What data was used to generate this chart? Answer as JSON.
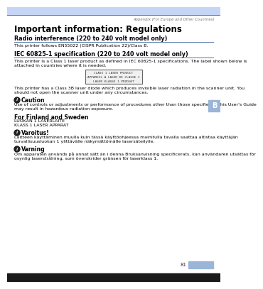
{
  "header_bg": "#c5d5f5",
  "header_line_color": "#4a6fa5",
  "page_bg": "#ffffff",
  "header_text": "Appendix (For Europe and Other Countries)",
  "header_text_color": "#777777",
  "title": "Important information: Regulations",
  "title_color": "#000000",
  "section1_heading": "Radio interference (220 to 240 volt model only)",
  "section1_line_color": "#4a6fa5",
  "section1_body": "This printer follows EN55022 (CISPR Publication 22)/Class B.",
  "section2_heading": "IEC 60825-1 specification (220 to 240 volt model only)",
  "section2_line_color": "#4a6fa5",
  "section2_body1": "This printer is a Class 1 laser product as defined in IEC 60825-1 specifications. The label shown below is",
  "section2_body1b": "attached in countries where it is needed.",
  "label_lines": [
    "CLASS 1 LASER PRODUCT",
    "APPAREIL A LASER DE CLASSE 1",
    "LASER KLASSE 1 PRODUKT"
  ],
  "section2_body2a": "This printer has a Class 3B laser diode which produces invisible laser radiation in the scanner unit. You",
  "section2_body2b": "should not open the scanner unit under any circumstances.",
  "caution_label": "Caution",
  "caution_body1": "Use of controls or adjustments or performance of procedures other than those specified in this User's Guide",
  "caution_body2": "may result in hazardous radiation exposure.",
  "finland_heading": "For Finland and Sweden",
  "finland_line1": "LUOKAN 1 LASERLAITE",
  "finland_line2": "KLASS 1 LASER APPARAT",
  "varoitus_label": "Varoitus!",
  "varoitus_body1": "Laitteen käyttäminen muulla kuin tässä käyttöohjeessa mainitulla tavalla saattaa altistaa käyttäjän",
  "varoitus_body2": "turvallisuusluokan 1 ylittävälle näkymättömälle lasersäteilylle.",
  "varning_label": "Varning",
  "varning_body1": "Om apparaten används på annat sätt än i denna Bruksanvisning specificerats, kan användaren utsättas för",
  "varning_body2": "osynlig laserstrålning, som överskrider gränsen för laserklass 1.",
  "tab_color": "#9ab5d8",
  "tab_letter": "B",
  "page_number": "81",
  "footer_tab_color": "#9ab5d8",
  "footer_bar_color": "#1a1a1a"
}
